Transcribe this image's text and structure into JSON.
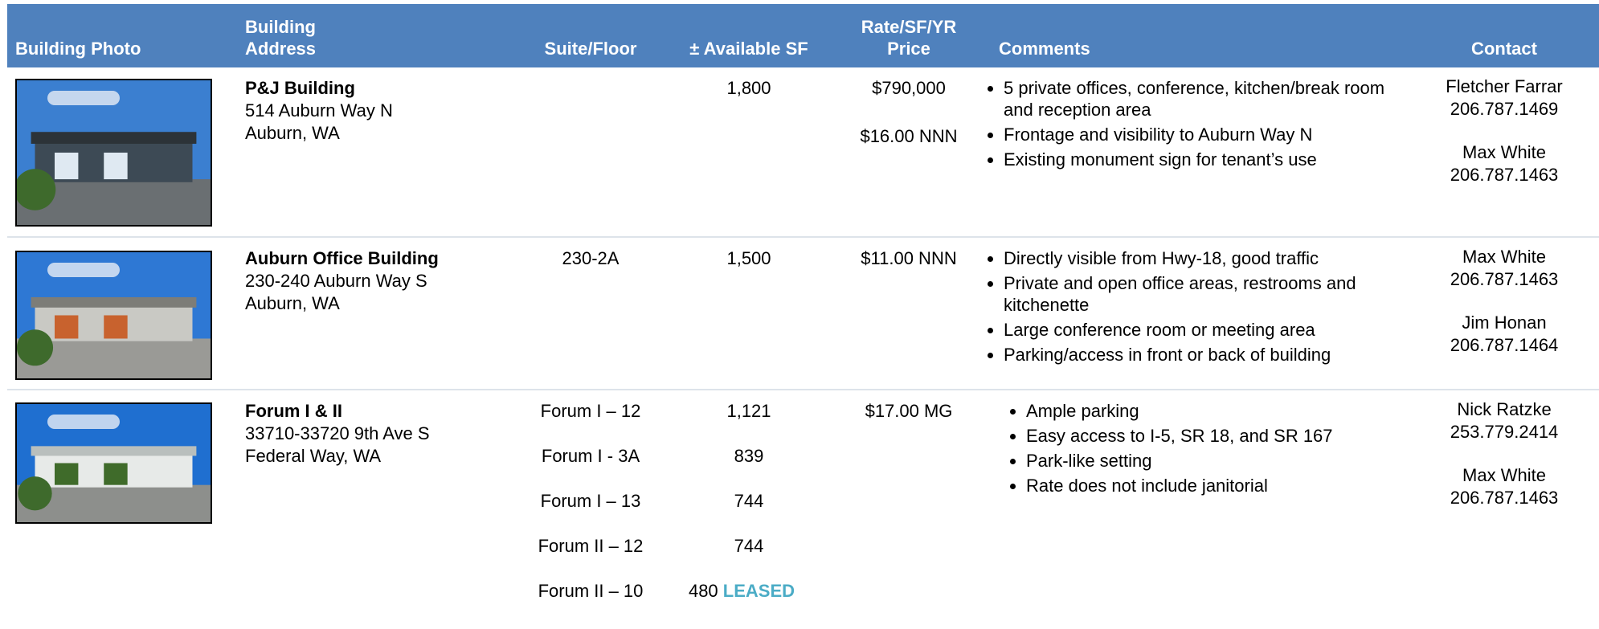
{
  "header": {
    "columns": [
      [
        "Building Photo"
      ],
      [
        "Building",
        "Address"
      ],
      [
        "Suite/Floor"
      ],
      [
        "± Available SF"
      ],
      [
        "Rate/SF/YR",
        "Price"
      ],
      [
        "Comments"
      ],
      [
        "Contact"
      ]
    ]
  },
  "rows": [
    {
      "name": "P&J Building",
      "address": [
        "514 Auburn Way N",
        "Auburn, WA"
      ],
      "units": [
        {
          "sf": "1,800"
        }
      ],
      "rates": [
        "$790,000",
        "$16.00 NNN"
      ],
      "comments": [
        "5 private offices, conference, kitchen/break room and reception area",
        "Frontage and visibility to Auburn Way N",
        "Existing monument sign for tenant’s use"
      ],
      "contacts": [
        {
          "name": "Fletcher Farrar",
          "phone": "206.787.1469"
        },
        {
          "name": "Max White",
          "phone": "206.787.1463"
        }
      ]
    },
    {
      "name": "Auburn Office Building",
      "address": [
        "230-240 Auburn Way S",
        "Auburn, WA"
      ],
      "units": [
        {
          "suite": "230-2A",
          "sf": "1,500"
        }
      ],
      "rates": [
        "$11.00 NNN"
      ],
      "comments": [
        "Directly visible from Hwy-18, good traffic",
        "Private and open office areas, restrooms and kitchenette",
        "Large conference room or meeting area",
        "Parking/access in front or back of building"
      ],
      "contacts": [
        {
          "name": "Max White",
          "phone": "206.787.1463"
        },
        {
          "name": "Jim Honan",
          "phone": "206.787.1464"
        }
      ]
    },
    {
      "name": "Forum I & II",
      "address": [
        "33710-33720 9th Ave S",
        "Federal Way, WA"
      ],
      "units": [
        {
          "suite": "Forum I – 12",
          "sf": "1,121"
        },
        {
          "suite": "Forum I - 3A",
          "sf": "839"
        },
        {
          "suite": "Forum I – 13",
          "sf": "744"
        },
        {
          "suite": "Forum II – 12",
          "sf": "744"
        },
        {
          "suite": "Forum II – 10",
          "sf": "480",
          "status": "LEASED"
        }
      ],
      "rates": [
        "$17.00 MG"
      ],
      "comments": [
        "Ample parking",
        "Easy access to I-5, SR 18, and SR 167",
        "Park-like setting",
        "Rate does not include janitorial"
      ],
      "contacts": [
        {
          "name": "Nick Ratzke",
          "phone": "253.779.2414"
        },
        {
          "name": "Max White",
          "phone": "206.787.1463"
        }
      ]
    }
  ]
}
